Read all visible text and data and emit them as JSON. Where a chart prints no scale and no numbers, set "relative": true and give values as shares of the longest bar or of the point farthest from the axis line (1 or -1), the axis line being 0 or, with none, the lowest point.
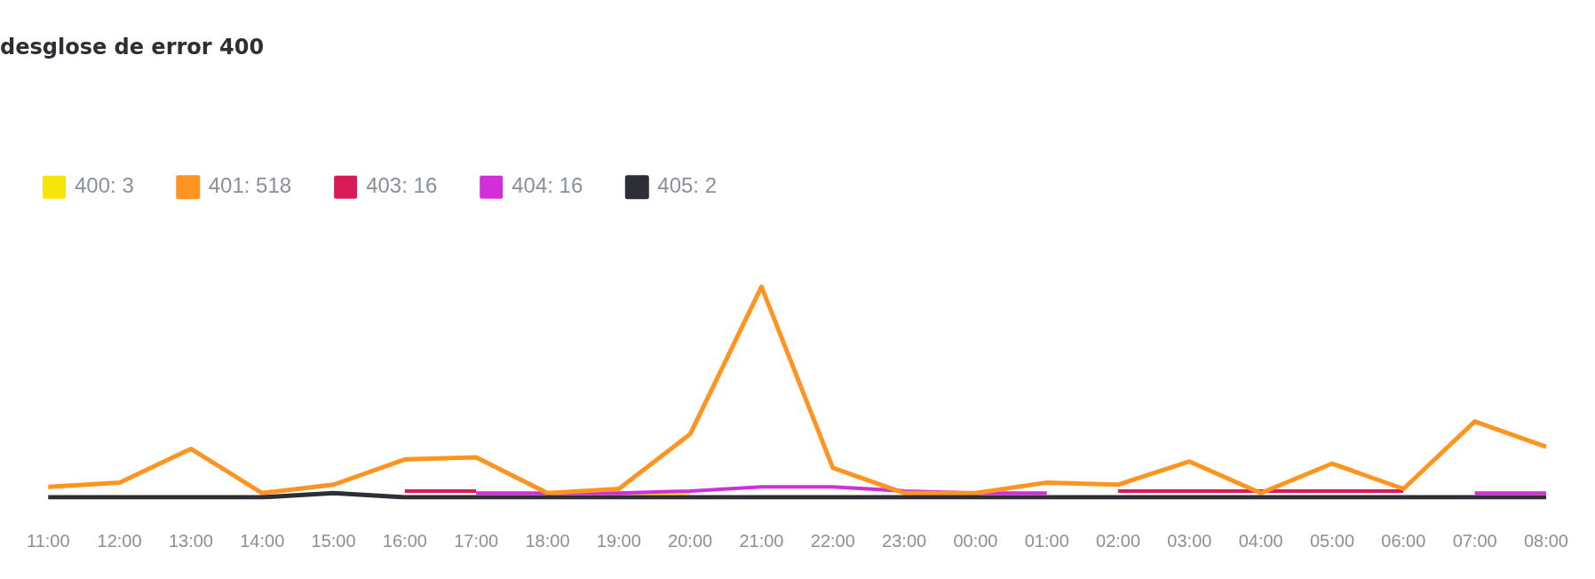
{
  "chart_data": {
    "type": "line",
    "title": "desglose de error 400",
    "relative": true,
    "legend": "top left",
    "marker": "none",
    "categories": [
      "11:00",
      "12:00",
      "13:00",
      "14:00",
      "15:00",
      "16:00",
      "17:00",
      "18:00",
      "19:00",
      "20:00",
      "21:00",
      "22:00",
      "23:00",
      "00:00",
      "01:00",
      "02:00",
      "03:00",
      "04:00",
      "05:00",
      "06:00",
      "07:00",
      "08:00"
    ],
    "series": [
      {
        "name": "400: 3",
        "color": "#f5e50a",
        "values": [
          null,
          null,
          null,
          null,
          null,
          null,
          null,
          null,
          0.02,
          0.02,
          null,
          null,
          null,
          null,
          null,
          null,
          null,
          null,
          null,
          null,
          null,
          null
        ]
      },
      {
        "name": "401: 518",
        "color": "#ff9520",
        "values": [
          0.05,
          0.07,
          0.23,
          0.02,
          0.06,
          0.18,
          0.19,
          0.02,
          0.04,
          0.3,
          1,
          0.14,
          0.02,
          0.02,
          0.07,
          0.06,
          0.17,
          0.02,
          0.16,
          0.04,
          0.36,
          0.24
        ]
      },
      {
        "name": "403: 16",
        "color": "#d81b57",
        "values": [
          null,
          null,
          null,
          null,
          null,
          0.03,
          0.03,
          null,
          null,
          null,
          null,
          null,
          null,
          null,
          null,
          0.03,
          0.03,
          0.03,
          0.03,
          0.03,
          null,
          null
        ]
      },
      {
        "name": "404: 16",
        "color": "#d22fd8",
        "values": [
          null,
          null,
          null,
          null,
          null,
          null,
          0.02,
          0.02,
          0.02,
          0.03,
          0.05,
          0.05,
          0.03,
          0.02,
          0.02,
          null,
          null,
          null,
          null,
          null,
          0.02,
          0.02
        ]
      },
      {
        "name": "405: 2",
        "color": "#2c2f36",
        "values": [
          0,
          0,
          0,
          0,
          0.02,
          0,
          0,
          0,
          0,
          0,
          0,
          0,
          0,
          0,
          0,
          0,
          0,
          0,
          0,
          0,
          0,
          0
        ]
      }
    ]
  }
}
